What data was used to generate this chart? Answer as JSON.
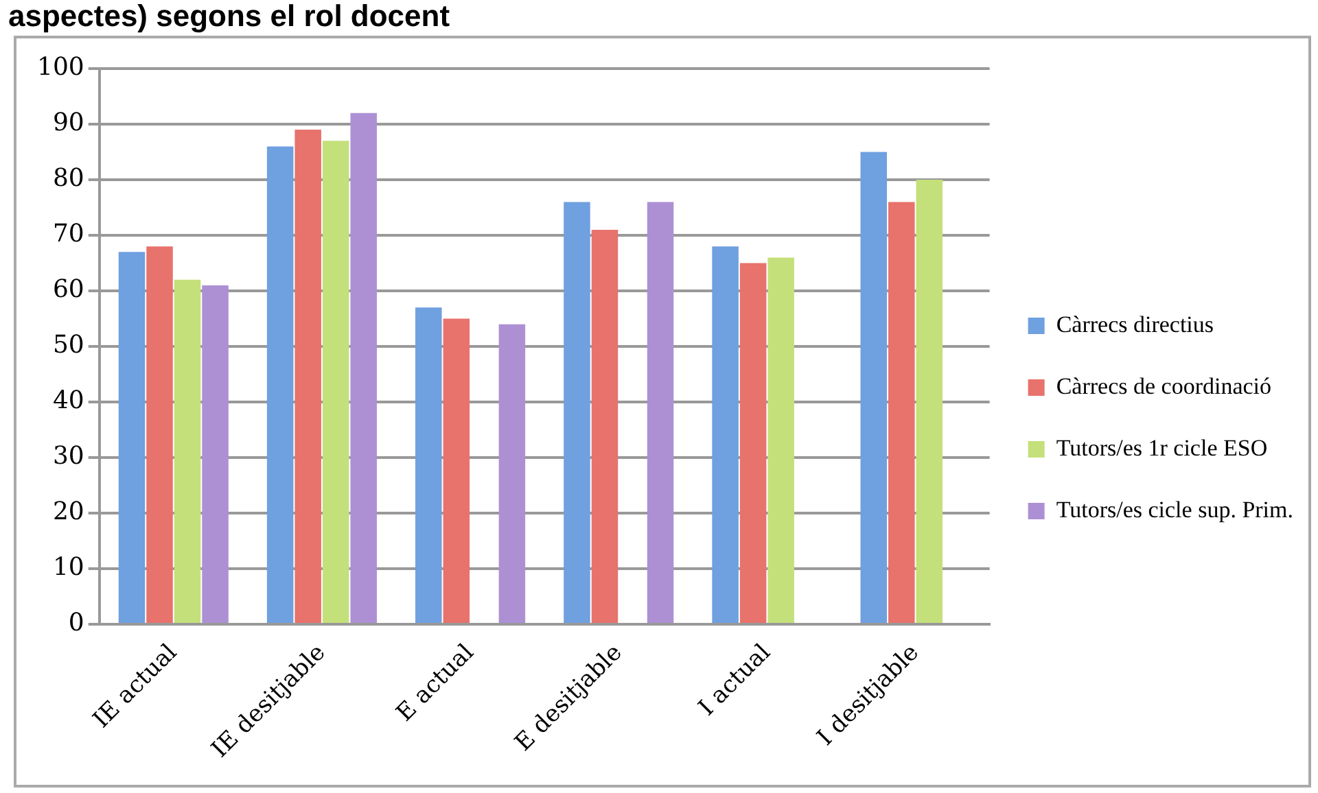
{
  "chart_data": {
    "type": "bar",
    "title": "aspectes) segons el rol docent",
    "categories": [
      "IE actual",
      "IE desitjable",
      "E actual",
      "E desitjable",
      "I actual",
      "I desitjable"
    ],
    "series": [
      {
        "name": "Càrrecs directius",
        "color": "#6fa0e0",
        "values": [
          67,
          86,
          57,
          76,
          68,
          85
        ]
      },
      {
        "name": "Càrrecs de coordinació",
        "color": "#e8726c",
        "values": [
          68,
          89,
          55,
          71,
          65,
          76
        ]
      },
      {
        "name": "Tutors/es 1r cicle ESO",
        "color": "#c4e07a",
        "values": [
          62,
          87,
          null,
          null,
          66,
          80
        ]
      },
      {
        "name": "Tutors/es cicle sup. Prim.",
        "color": "#ad90d4",
        "values": [
          61,
          92,
          54,
          76,
          null,
          null
        ]
      }
    ],
    "ylim": [
      0,
      100
    ],
    "yticks": [
      0,
      10,
      20,
      30,
      40,
      50,
      60,
      70,
      80,
      90,
      100
    ],
    "grid": "y",
    "legend": "right"
  }
}
